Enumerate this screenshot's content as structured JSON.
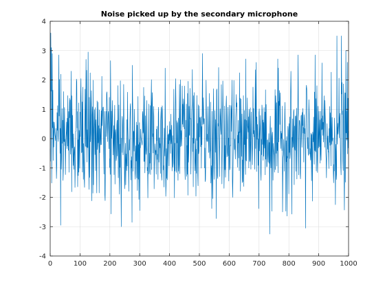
{
  "chart_data": {
    "type": "line",
    "title": "Noise picked up by the secondary microphone",
    "xlabel": "",
    "ylabel": "",
    "xlim": [
      0,
      1000
    ],
    "ylim": [
      -4,
      4
    ],
    "xticks": [
      "0",
      "100",
      "200",
      "300",
      "400",
      "500",
      "600",
      "700",
      "800",
      "900",
      "1000"
    ],
    "yticks": [
      "-4",
      "-3",
      "-2",
      "-1",
      "0",
      "1",
      "2",
      "3",
      "4"
    ],
    "grid": true,
    "legend": "none",
    "line_color": "#0072bd",
    "n_samples": 1000,
    "value_std": 1.0,
    "notable_points": [
      {
        "x": 2,
        "y": 3.6
      },
      {
        "x": 4,
        "y": 3.1
      },
      {
        "x": 7,
        "y": 2.9
      },
      {
        "x": 35,
        "y": -2.95
      },
      {
        "x": 70,
        "y": 2.3
      },
      {
        "x": 120,
        "y": 2.7
      },
      {
        "x": 127,
        "y": 2.95
      },
      {
        "x": 238,
        "y": -3.0
      },
      {
        "x": 275,
        "y": 2.5
      },
      {
        "x": 300,
        "y": -2.45
      },
      {
        "x": 385,
        "y": 2.4
      },
      {
        "x": 510,
        "y": 2.9
      },
      {
        "x": 735,
        "y": -3.25
      },
      {
        "x": 855,
        "y": -3.05
      },
      {
        "x": 960,
        "y": 3.5
      },
      {
        "x": 975,
        "y": 3.5
      },
      {
        "x": 990,
        "y": 3.0
      },
      {
        "x": 995,
        "y": 2.6
      }
    ]
  }
}
